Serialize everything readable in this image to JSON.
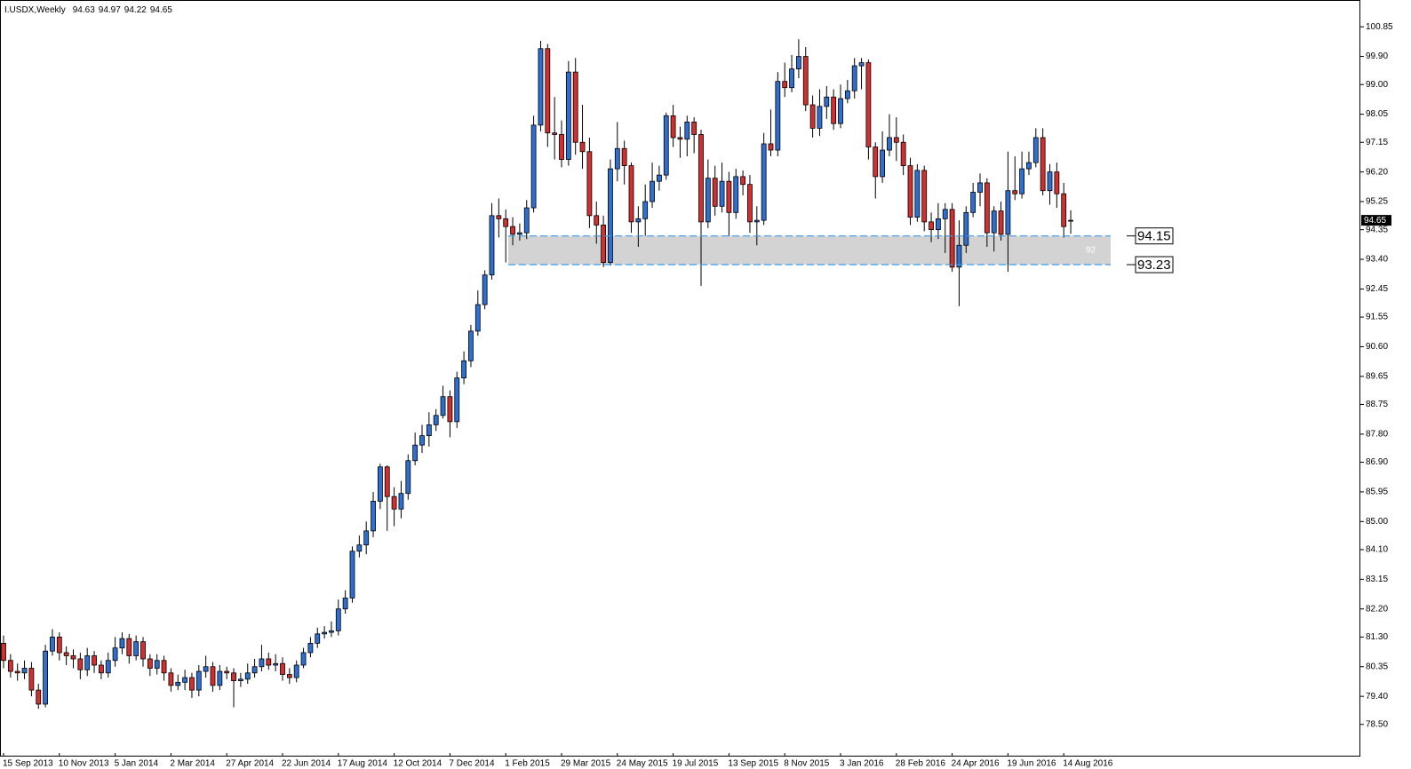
{
  "chart_data": {
    "type": "candlestick",
    "symbol": "I.USDX,Weekly",
    "categories": [
      "15 Sep 2013",
      null,
      null,
      null,
      null,
      null,
      null,
      null,
      "10 Nov 2013",
      null,
      null,
      null,
      null,
      null,
      null,
      null,
      "5 Jan 2014",
      null,
      null,
      null,
      null,
      null,
      null,
      null,
      "2 Mar 2014",
      null,
      null,
      null,
      null,
      null,
      null,
      null,
      "27 Apr 2014",
      null,
      null,
      null,
      null,
      null,
      null,
      null,
      "22 Jun 2014",
      null,
      null,
      null,
      null,
      null,
      null,
      null,
      "17 Aug 2014",
      null,
      null,
      null,
      null,
      null,
      null,
      null,
      "12 Oct 2014",
      null,
      null,
      null,
      null,
      null,
      null,
      null,
      "7 Dec 2014",
      null,
      null,
      null,
      null,
      null,
      null,
      null,
      "1 Feb 2015",
      null,
      null,
      null,
      null,
      null,
      null,
      null,
      "29 Mar 2015",
      null,
      null,
      null,
      null,
      null,
      null,
      null,
      "24 May 2015",
      null,
      null,
      null,
      null,
      null,
      null,
      null,
      "19 Jul 2015",
      null,
      null,
      null,
      null,
      null,
      null,
      null,
      "13 Sep 2015",
      null,
      null,
      null,
      null,
      null,
      null,
      null,
      "8 Nov 2015",
      null,
      null,
      null,
      null,
      null,
      null,
      null,
      "3 Jan 2016",
      null,
      null,
      null,
      null,
      null,
      null,
      null,
      "28 Feb 2016",
      null,
      null,
      null,
      null,
      null,
      null,
      null,
      "24 Apr 2016",
      null,
      null,
      null,
      null,
      null,
      null,
      null,
      "19 Jun 2016",
      null,
      null,
      null,
      null,
      null,
      null,
      null,
      "14 Aug 2016",
      null
    ],
    "open": [
      81.1,
      80.55,
      80.2,
      80.15,
      80.3,
      79.6,
      79.15,
      80.85,
      81.3,
      80.8,
      80.7,
      80.6,
      80.25,
      80.7,
      80.4,
      80.15,
      80.55,
      80.95,
      81.25,
      80.7,
      81.15,
      80.6,
      80.3,
      80.55,
      80.15,
      79.75,
      79.85,
      80.0,
      79.6,
      80.2,
      80.35,
      79.75,
      80.2,
      80.15,
      79.9,
      79.95,
      80.15,
      80.35,
      80.6,
      80.4,
      80.45,
      80.1,
      80.0,
      80.4,
      80.8,
      81.1,
      81.4,
      81.45,
      81.5,
      82.2,
      82.55,
      84.05,
      84.25,
      84.7,
      85.65,
      86.75,
      85.8,
      85.4,
      85.9,
      86.95,
      87.45,
      87.75,
      88.1,
      88.4,
      89.0,
      88.2,
      89.6,
      90.15,
      91.1,
      91.95,
      92.9,
      94.8,
      94.7,
      94.45,
      94.2,
      94.25,
      95.05,
      97.7,
      100.15,
      97.45,
      97.4,
      96.6,
      99.4,
      97.15,
      96.85,
      94.8,
      94.5,
      93.3,
      96.3,
      96.95,
      96.4,
      94.6,
      94.7,
      95.25,
      95.9,
      96.1,
      98.0,
      97.3,
      97.25,
      97.8,
      97.4,
      94.6,
      96.0,
      95.1,
      95.9,
      94.9,
      96.05,
      95.8,
      94.6,
      94.65,
      97.1,
      96.9,
      99.1,
      98.9,
      99.5,
      99.9,
      98.35,
      97.6,
      98.3,
      98.6,
      97.75,
      98.55,
      98.8,
      99.6,
      99.7,
      97.0,
      96.05,
      96.9,
      97.3,
      97.15,
      96.4,
      94.75,
      96.25,
      94.6,
      94.35,
      94.7,
      95.0,
      93.15,
      93.85,
      94.9,
      95.55,
      95.85,
      94.25,
      94.95,
      94.2,
      95.6,
      95.5,
      96.3,
      96.5,
      97.3,
      95.6,
      96.2,
      95.5,
      94.63
    ],
    "high": [
      81.35,
      80.75,
      80.45,
      80.55,
      80.5,
      79.8,
      81.05,
      81.55,
      81.45,
      81.0,
      80.9,
      80.8,
      80.95,
      80.85,
      80.55,
      80.8,
      81.3,
      81.45,
      81.4,
      81.35,
      81.3,
      80.75,
      80.75,
      80.7,
      80.3,
      80.1,
      80.25,
      80.15,
      80.4,
      80.7,
      80.5,
      80.4,
      80.35,
      80.3,
      80.15,
      80.45,
      80.6,
      81.05,
      80.8,
      80.75,
      80.65,
      80.3,
      80.55,
      80.95,
      81.3,
      81.6,
      81.65,
      81.8,
      82.5,
      82.8,
      84.2,
      84.55,
      85.0,
      85.95,
      86.85,
      86.8,
      86.1,
      86.3,
      87.15,
      87.85,
      88.1,
      88.5,
      88.6,
      89.35,
      89.2,
      89.8,
      90.45,
      91.3,
      92.4,
      93.05,
      95.2,
      95.35,
      95.0,
      94.75,
      94.55,
      95.3,
      98.0,
      100.4,
      100.3,
      98.6,
      97.85,
      99.75,
      99.85,
      98.35,
      97.3,
      95.25,
      94.8,
      96.6,
      97.8,
      97.2,
      96.5,
      95.1,
      95.8,
      96.5,
      96.4,
      98.1,
      98.35,
      97.65,
      98.0,
      97.95,
      97.55,
      96.6,
      96.4,
      96.5,
      96.2,
      96.3,
      96.25,
      96.1,
      95.1,
      97.45,
      98.2,
      99.4,
      99.7,
      99.95,
      100.45,
      100.2,
      98.65,
      98.85,
      98.95,
      98.85,
      99.0,
      99.15,
      99.85,
      99.85,
      99.8,
      97.15,
      97.5,
      98.05,
      97.95,
      97.4,
      96.65,
      96.45,
      96.4,
      94.9,
      95.2,
      95.2,
      95.2,
      94.65,
      95.1,
      95.85,
      96.15,
      96.0,
      95.1,
      95.25,
      96.85,
      96.7,
      96.85,
      96.85,
      97.6,
      97.6,
      96.45,
      96.5,
      95.85,
      94.97
    ],
    "low": [
      80.3,
      80.0,
      79.9,
      79.95,
      79.4,
      79.0,
      79.05,
      80.7,
      80.55,
      80.4,
      80.3,
      79.95,
      80.05,
      80.15,
      79.95,
      80.0,
      80.35,
      80.75,
      80.45,
      80.55,
      80.35,
      80.05,
      80.1,
      79.9,
      79.55,
      79.6,
      79.6,
      79.35,
      79.4,
      80.0,
      79.55,
      79.6,
      79.95,
      79.05,
      79.7,
      79.8,
      80.0,
      80.2,
      80.25,
      80.2,
      79.9,
      79.8,
      79.85,
      80.3,
      80.65,
      80.95,
      81.25,
      81.3,
      81.35,
      82.05,
      82.4,
      83.85,
      83.95,
      84.5,
      85.4,
      84.7,
      84.85,
      85.1,
      85.7,
      86.8,
      87.2,
      87.4,
      87.9,
      88.3,
      87.7,
      88.0,
      89.4,
      89.95,
      90.95,
      91.8,
      92.75,
      94.1,
      93.3,
      93.85,
      94.0,
      94.05,
      94.9,
      97.5,
      97.0,
      96.6,
      96.35,
      96.4,
      96.75,
      96.3,
      94.4,
      93.9,
      93.15,
      93.2,
      95.9,
      95.8,
      94.25,
      93.8,
      94.15,
      95.05,
      95.6,
      95.95,
      97.0,
      96.65,
      96.7,
      96.8,
      92.55,
      94.4,
      94.8,
      94.9,
      94.15,
      94.7,
      95.45,
      94.25,
      93.85,
      94.5,
      96.7,
      96.7,
      98.6,
      98.75,
      99.2,
      98.15,
      97.3,
      97.35,
      97.9,
      97.55,
      97.6,
      98.4,
      98.55,
      98.85,
      96.6,
      95.35,
      95.85,
      96.7,
      96.55,
      96.1,
      94.5,
      94.6,
      94.3,
      93.95,
      94.05,
      93.6,
      93.0,
      91.9,
      93.6,
      94.75,
      95.1,
      93.8,
      93.65,
      94.0,
      93.0,
      95.3,
      95.35,
      96.1,
      96.35,
      95.45,
      95.15,
      95.05,
      94.1,
      94.22
    ],
    "close": [
      80.55,
      80.2,
      80.15,
      80.3,
      79.6,
      79.15,
      80.85,
      81.3,
      80.8,
      80.7,
      80.6,
      80.25,
      80.7,
      80.4,
      80.15,
      80.55,
      80.95,
      81.25,
      80.7,
      81.15,
      80.6,
      80.3,
      80.55,
      80.15,
      79.75,
      79.85,
      80.0,
      79.6,
      80.2,
      80.35,
      79.75,
      80.2,
      80.15,
      79.9,
      79.95,
      80.15,
      80.35,
      80.6,
      80.4,
      80.45,
      80.1,
      80.0,
      80.4,
      80.8,
      81.1,
      81.4,
      81.45,
      81.5,
      82.2,
      82.55,
      84.05,
      84.25,
      84.7,
      85.65,
      86.75,
      85.8,
      85.4,
      85.9,
      86.95,
      87.45,
      87.75,
      88.1,
      88.4,
      89.0,
      88.2,
      89.6,
      90.15,
      91.1,
      91.95,
      92.9,
      94.8,
      94.7,
      94.45,
      94.2,
      94.25,
      95.05,
      97.7,
      100.15,
      97.45,
      97.4,
      96.6,
      99.4,
      97.15,
      96.85,
      94.8,
      94.5,
      93.3,
      96.3,
      96.95,
      96.4,
      94.6,
      94.7,
      95.25,
      95.9,
      96.1,
      98.0,
      97.3,
      97.25,
      97.8,
      97.4,
      94.6,
      96.0,
      95.1,
      95.9,
      94.9,
      96.05,
      95.8,
      94.6,
      94.65,
      97.1,
      96.9,
      99.1,
      98.9,
      99.5,
      99.9,
      98.35,
      97.6,
      98.3,
      98.6,
      97.75,
      98.55,
      98.8,
      99.6,
      99.7,
      97.0,
      96.05,
      96.9,
      97.3,
      97.15,
      96.4,
      94.75,
      96.25,
      94.6,
      94.35,
      94.7,
      95.0,
      93.15,
      93.85,
      94.9,
      95.55,
      95.85,
      94.25,
      94.95,
      94.2,
      95.6,
      95.5,
      96.3,
      96.5,
      97.3,
      95.6,
      96.2,
      95.5,
      94.45,
      94.65
    ],
    "up_color": "#2f6fd0",
    "down_color": "#d03030",
    "ylim": [
      77.47,
      101.68
    ],
    "yticks": [
      {
        "value": 78.5,
        "label": "78.50"
      },
      {
        "value": 79.4,
        "label": "79.40"
      },
      80.35,
      {
        "value": 81.3,
        "label": "81.30"
      },
      {
        "value": 82.2,
        "label": "82.20"
      },
      83.15,
      {
        "value": 84.1,
        "label": "84.10"
      },
      {
        "value": 85,
        "label": "85.00"
      },
      85.95,
      {
        "value": 86.9,
        "label": "86.90"
      },
      {
        "value": 87.8,
        "label": "87.80"
      },
      88.75,
      89.65,
      {
        "value": 90.6,
        "label": "90.60"
      },
      91.55,
      92.45,
      {
        "value": 93.4,
        "label": "93.40"
      },
      94.35,
      95.25,
      {
        "value": 96.2,
        "label": "96.20"
      },
      97.15,
      98.05,
      {
        "value": 99,
        "label": "99.00"
      },
      {
        "value": 99.9,
        "label": "99.90"
      },
      100.85
    ],
    "levels": [
      94.15,
      93.23
    ],
    "level_color": "#3d9bea",
    "zone_color": "#d3d3d3",
    "zone_label": "92"
  }
}
